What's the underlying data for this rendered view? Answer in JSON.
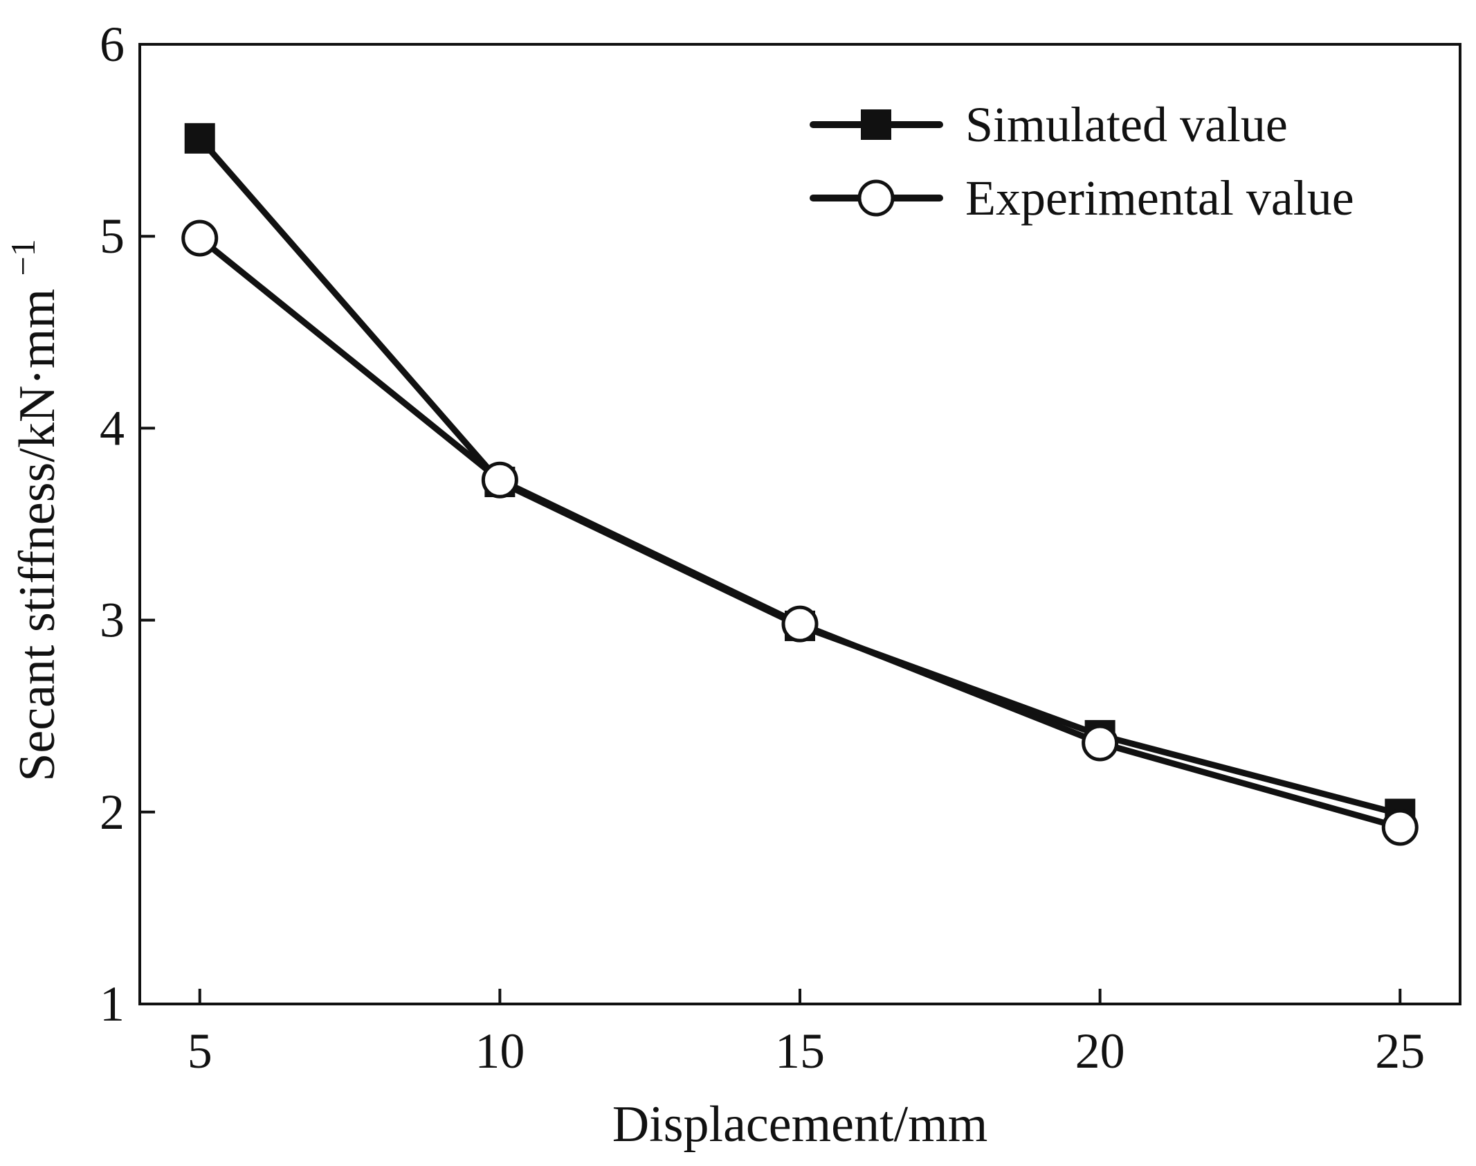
{
  "chart_data": {
    "type": "line",
    "title": "",
    "xlabel": "Displacement/mm",
    "ylabel": "Secant stiffness/kN·mm",
    "ylabel_superscript": "−1",
    "x": [
      5,
      10,
      15,
      20,
      25
    ],
    "xlim": [
      4,
      26
    ],
    "ylim": [
      1,
      6
    ],
    "xticks": [
      5,
      10,
      15,
      20,
      25
    ],
    "yticks": [
      1,
      2,
      3,
      4,
      5,
      6
    ],
    "grid": false,
    "legend_position": "top-right",
    "series": [
      {
        "name": "Simulated value",
        "marker": "filled-square",
        "color": "#111111",
        "values": [
          5.51,
          3.72,
          2.97,
          2.4,
          1.99
        ]
      },
      {
        "name": "Experimental value",
        "marker": "open-circle",
        "color": "#111111",
        "values": [
          4.99,
          3.73,
          2.98,
          2.36,
          1.92
        ]
      }
    ]
  }
}
